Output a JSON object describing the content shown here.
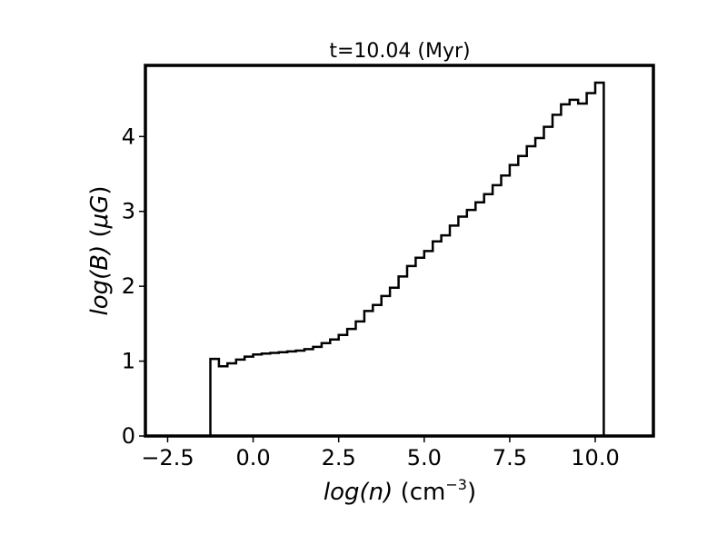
{
  "chart_data": {
    "type": "line",
    "drawstyle": "step-post",
    "title": "t=10.04 (Myr)",
    "xlabel": {
      "italic": "log(n)",
      "rest": " (cm",
      "sup": "−3",
      "close": ")"
    },
    "ylabel": {
      "italic": "log(B)",
      "rest": " (",
      "greek": "μG",
      "close": ")"
    },
    "xlim": [
      -3.15,
      11.7
    ],
    "ylim": [
      0,
      4.95
    ],
    "xticks": [
      -2.5,
      0.0,
      2.5,
      5.0,
      7.5,
      10.0
    ],
    "xtick_labels": [
      "−2.5",
      "0.0",
      "2.5",
      "5.0",
      "7.5",
      "10.0"
    ],
    "yticks": [
      0,
      1,
      2,
      3,
      4
    ],
    "ytick_labels": [
      "0",
      "1",
      "2",
      "3",
      "4"
    ],
    "grid": false,
    "bin_width": 0.25,
    "bin_edges_start": -1.25,
    "series": [
      {
        "color": "#000000",
        "values": [
          1.03,
          0.93,
          0.97,
          1.02,
          1.06,
          1.09,
          1.1,
          1.11,
          1.12,
          1.13,
          1.14,
          1.16,
          1.19,
          1.24,
          1.29,
          1.35,
          1.43,
          1.53,
          1.67,
          1.75,
          1.87,
          1.98,
          2.13,
          2.27,
          2.38,
          2.47,
          2.6,
          2.68,
          2.81,
          2.93,
          3.02,
          3.12,
          3.23,
          3.35,
          3.48,
          3.62,
          3.74,
          3.87,
          3.98,
          4.13,
          4.29,
          4.43,
          4.49,
          4.44,
          4.58,
          4.72
        ]
      }
    ]
  }
}
